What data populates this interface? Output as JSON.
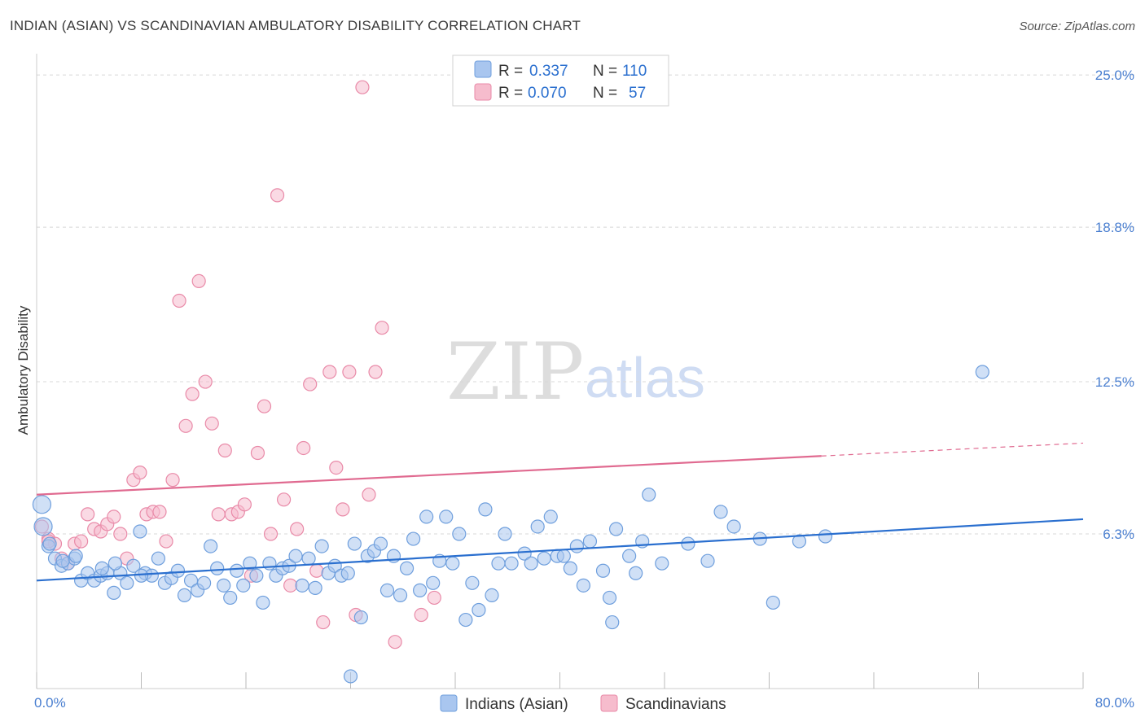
{
  "title": "INDIAN (ASIAN) VS SCANDINAVIAN AMBULATORY DISABILITY CORRELATION CHART",
  "source": "Source: ZipAtlas.com",
  "watermark": {
    "zip": "ZIP",
    "atlas": "atlas"
  },
  "colors": {
    "blue_fill": "#a9c6ef",
    "blue_stroke": "#6f9fdd",
    "blue_line": "#2a6fcf",
    "pink_fill": "#f6bccd",
    "pink_stroke": "#e98aa8",
    "pink_line": "#e06a90",
    "grid": "#d8d8d8",
    "label": "#4a7fd0"
  },
  "legend_top": {
    "rows": [
      {
        "r_label": "R =",
        "r_value": "0.337",
        "n_label": "N =",
        "n_value": "110",
        "color": "blue"
      },
      {
        "r_label": "R =",
        "r_value": "0.070",
        "n_label": "N =",
        "n_value": "57",
        "color": "pink"
      }
    ]
  },
  "legend_bottom": {
    "series1": "Indians (Asian)",
    "series2": "Scandinavians"
  },
  "chart_data": {
    "type": "scatter",
    "title": "INDIAN (ASIAN) VS SCANDINAVIAN AMBULATORY DISABILITY CORRELATION CHART",
    "xlabel": "",
    "ylabel": "Ambulatory Disability",
    "xlim": [
      0,
      80
    ],
    "ylim": [
      0,
      25.6
    ],
    "x_tick_labels": {
      "left": "0.0%",
      "right": "80.0%"
    },
    "y_ticks": [
      6.3,
      12.5,
      18.8,
      25.0
    ],
    "y_tick_labels": [
      "6.3%",
      "12.5%",
      "18.8%",
      "25.0%"
    ],
    "series": [
      {
        "name": "Indians (Asian)",
        "color": "blue",
        "trend": {
          "x0": 0,
          "y0": 4.4,
          "x1": 80,
          "y1": 6.9,
          "dashed_from": null
        },
        "points": [
          [
            0.4,
            7.5
          ],
          [
            0.5,
            6.6
          ],
          [
            0.9,
            5.8
          ],
          [
            1.4,
            5.3
          ],
          [
            1.9,
            5.0
          ],
          [
            2.4,
            5.1
          ],
          [
            2.9,
            5.3
          ],
          [
            3.4,
            4.4
          ],
          [
            3.9,
            4.7
          ],
          [
            4.4,
            4.4
          ],
          [
            4.9,
            4.6
          ],
          [
            5.4,
            4.7
          ],
          [
            5.9,
            3.9
          ],
          [
            6.4,
            4.7
          ],
          [
            6.9,
            4.3
          ],
          [
            7.4,
            5.0
          ],
          [
            7.9,
            6.4
          ],
          [
            8.3,
            4.7
          ],
          [
            8.8,
            4.6
          ],
          [
            9.3,
            5.3
          ],
          [
            9.8,
            4.3
          ],
          [
            10.3,
            4.5
          ],
          [
            10.8,
            4.8
          ],
          [
            11.3,
            3.8
          ],
          [
            11.8,
            4.4
          ],
          [
            12.3,
            4.0
          ],
          [
            12.8,
            4.3
          ],
          [
            13.3,
            5.8
          ],
          [
            13.8,
            4.9
          ],
          [
            14.3,
            4.2
          ],
          [
            14.8,
            3.7
          ],
          [
            15.3,
            4.8
          ],
          [
            15.8,
            4.2
          ],
          [
            16.3,
            5.1
          ],
          [
            16.8,
            4.6
          ],
          [
            17.3,
            3.5
          ],
          [
            17.8,
            5.1
          ],
          [
            18.3,
            4.6
          ],
          [
            18.8,
            4.9
          ],
          [
            19.3,
            5.0
          ],
          [
            19.8,
            5.4
          ],
          [
            20.3,
            4.2
          ],
          [
            20.8,
            5.3
          ],
          [
            21.3,
            4.1
          ],
          [
            21.8,
            5.8
          ],
          [
            22.3,
            4.7
          ],
          [
            22.8,
            5.0
          ],
          [
            23.3,
            4.6
          ],
          [
            23.8,
            4.7
          ],
          [
            24.3,
            5.9
          ],
          [
            24.8,
            2.9
          ],
          [
            25.3,
            5.4
          ],
          [
            25.8,
            5.6
          ],
          [
            26.3,
            5.9
          ],
          [
            26.8,
            4.0
          ],
          [
            27.3,
            5.4
          ],
          [
            27.8,
            3.8
          ],
          [
            28.3,
            4.9
          ],
          [
            28.8,
            6.1
          ],
          [
            29.3,
            4.0
          ],
          [
            29.8,
            7.0
          ],
          [
            30.3,
            4.3
          ],
          [
            30.8,
            5.2
          ],
          [
            31.3,
            7.0
          ],
          [
            31.8,
            5.1
          ],
          [
            32.3,
            6.3
          ],
          [
            32.8,
            2.8
          ],
          [
            33.3,
            4.3
          ],
          [
            33.8,
            3.2
          ],
          [
            34.3,
            7.3
          ],
          [
            34.8,
            3.8
          ],
          [
            35.3,
            5.1
          ],
          [
            35.8,
            6.3
          ],
          [
            36.3,
            5.1
          ],
          [
            37.3,
            5.5
          ],
          [
            37.8,
            5.1
          ],
          [
            38.3,
            6.6
          ],
          [
            38.8,
            5.3
          ],
          [
            39.3,
            7.0
          ],
          [
            39.8,
            5.4
          ],
          [
            40.3,
            5.4
          ],
          [
            40.8,
            4.9
          ],
          [
            41.3,
            5.8
          ],
          [
            41.8,
            4.2
          ],
          [
            42.3,
            6.0
          ],
          [
            43.3,
            4.8
          ],
          [
            43.8,
            3.7
          ],
          [
            44.0,
            2.7
          ],
          [
            44.3,
            6.5
          ],
          [
            45.3,
            5.4
          ],
          [
            45.8,
            4.7
          ],
          [
            46.3,
            6.0
          ],
          [
            46.8,
            7.9
          ],
          [
            47.8,
            5.1
          ],
          [
            49.8,
            5.9
          ],
          [
            51.3,
            5.2
          ],
          [
            52.3,
            7.2
          ],
          [
            53.3,
            6.6
          ],
          [
            55.3,
            6.1
          ],
          [
            56.3,
            3.5
          ],
          [
            58.3,
            6.0
          ],
          [
            60.3,
            6.2
          ],
          [
            72.3,
            12.9
          ],
          [
            1.0,
            5.9
          ],
          [
            2.0,
            5.2
          ],
          [
            3.0,
            5.4
          ],
          [
            5.0,
            4.9
          ],
          [
            6.0,
            5.1
          ],
          [
            8.0,
            4.6
          ],
          [
            24.0,
            0.5
          ]
        ]
      },
      {
        "name": "Scandinavians",
        "color": "pink",
        "trend": {
          "x0": 0,
          "y0": 7.9,
          "x1": 80,
          "y1": 10.0,
          "dashed_from": 60
        },
        "points": [
          [
            0.4,
            6.6
          ],
          [
            0.9,
            6.1
          ],
          [
            1.4,
            5.9
          ],
          [
            1.9,
            5.3
          ],
          [
            2.4,
            5.1
          ],
          [
            2.9,
            5.9
          ],
          [
            3.4,
            6.0
          ],
          [
            3.9,
            7.1
          ],
          [
            4.4,
            6.5
          ],
          [
            4.9,
            6.4
          ],
          [
            5.4,
            6.7
          ],
          [
            5.9,
            7.0
          ],
          [
            6.4,
            6.3
          ],
          [
            6.9,
            5.3
          ],
          [
            7.4,
            8.5
          ],
          [
            7.9,
            8.8
          ],
          [
            8.4,
            7.1
          ],
          [
            8.9,
            7.2
          ],
          [
            9.4,
            7.2
          ],
          [
            9.9,
            6.0
          ],
          [
            10.4,
            8.5
          ],
          [
            10.9,
            15.8
          ],
          [
            11.4,
            10.7
          ],
          [
            11.9,
            12.0
          ],
          [
            12.4,
            16.6
          ],
          [
            12.9,
            12.5
          ],
          [
            13.4,
            10.8
          ],
          [
            13.9,
            7.1
          ],
          [
            14.4,
            9.7
          ],
          [
            14.9,
            7.1
          ],
          [
            15.4,
            7.2
          ],
          [
            15.9,
            7.5
          ],
          [
            16.4,
            4.6
          ],
          [
            16.9,
            9.6
          ],
          [
            17.4,
            11.5
          ],
          [
            17.9,
            6.3
          ],
          [
            18.4,
            20.1
          ],
          [
            18.9,
            7.7
          ],
          [
            19.4,
            4.2
          ],
          [
            19.9,
            6.5
          ],
          [
            20.4,
            9.8
          ],
          [
            20.9,
            12.4
          ],
          [
            21.4,
            4.8
          ],
          [
            21.9,
            2.7
          ],
          [
            22.4,
            12.9
          ],
          [
            22.9,
            9.0
          ],
          [
            23.4,
            7.3
          ],
          [
            23.9,
            12.9
          ],
          [
            24.4,
            3.0
          ],
          [
            24.9,
            24.5
          ],
          [
            25.4,
            7.9
          ],
          [
            25.9,
            12.9
          ],
          [
            26.4,
            14.7
          ],
          [
            27.4,
            1.9
          ],
          [
            29.4,
            3.0
          ],
          [
            30.4,
            3.7
          ],
          [
            0.9,
            6.0
          ]
        ]
      }
    ]
  }
}
